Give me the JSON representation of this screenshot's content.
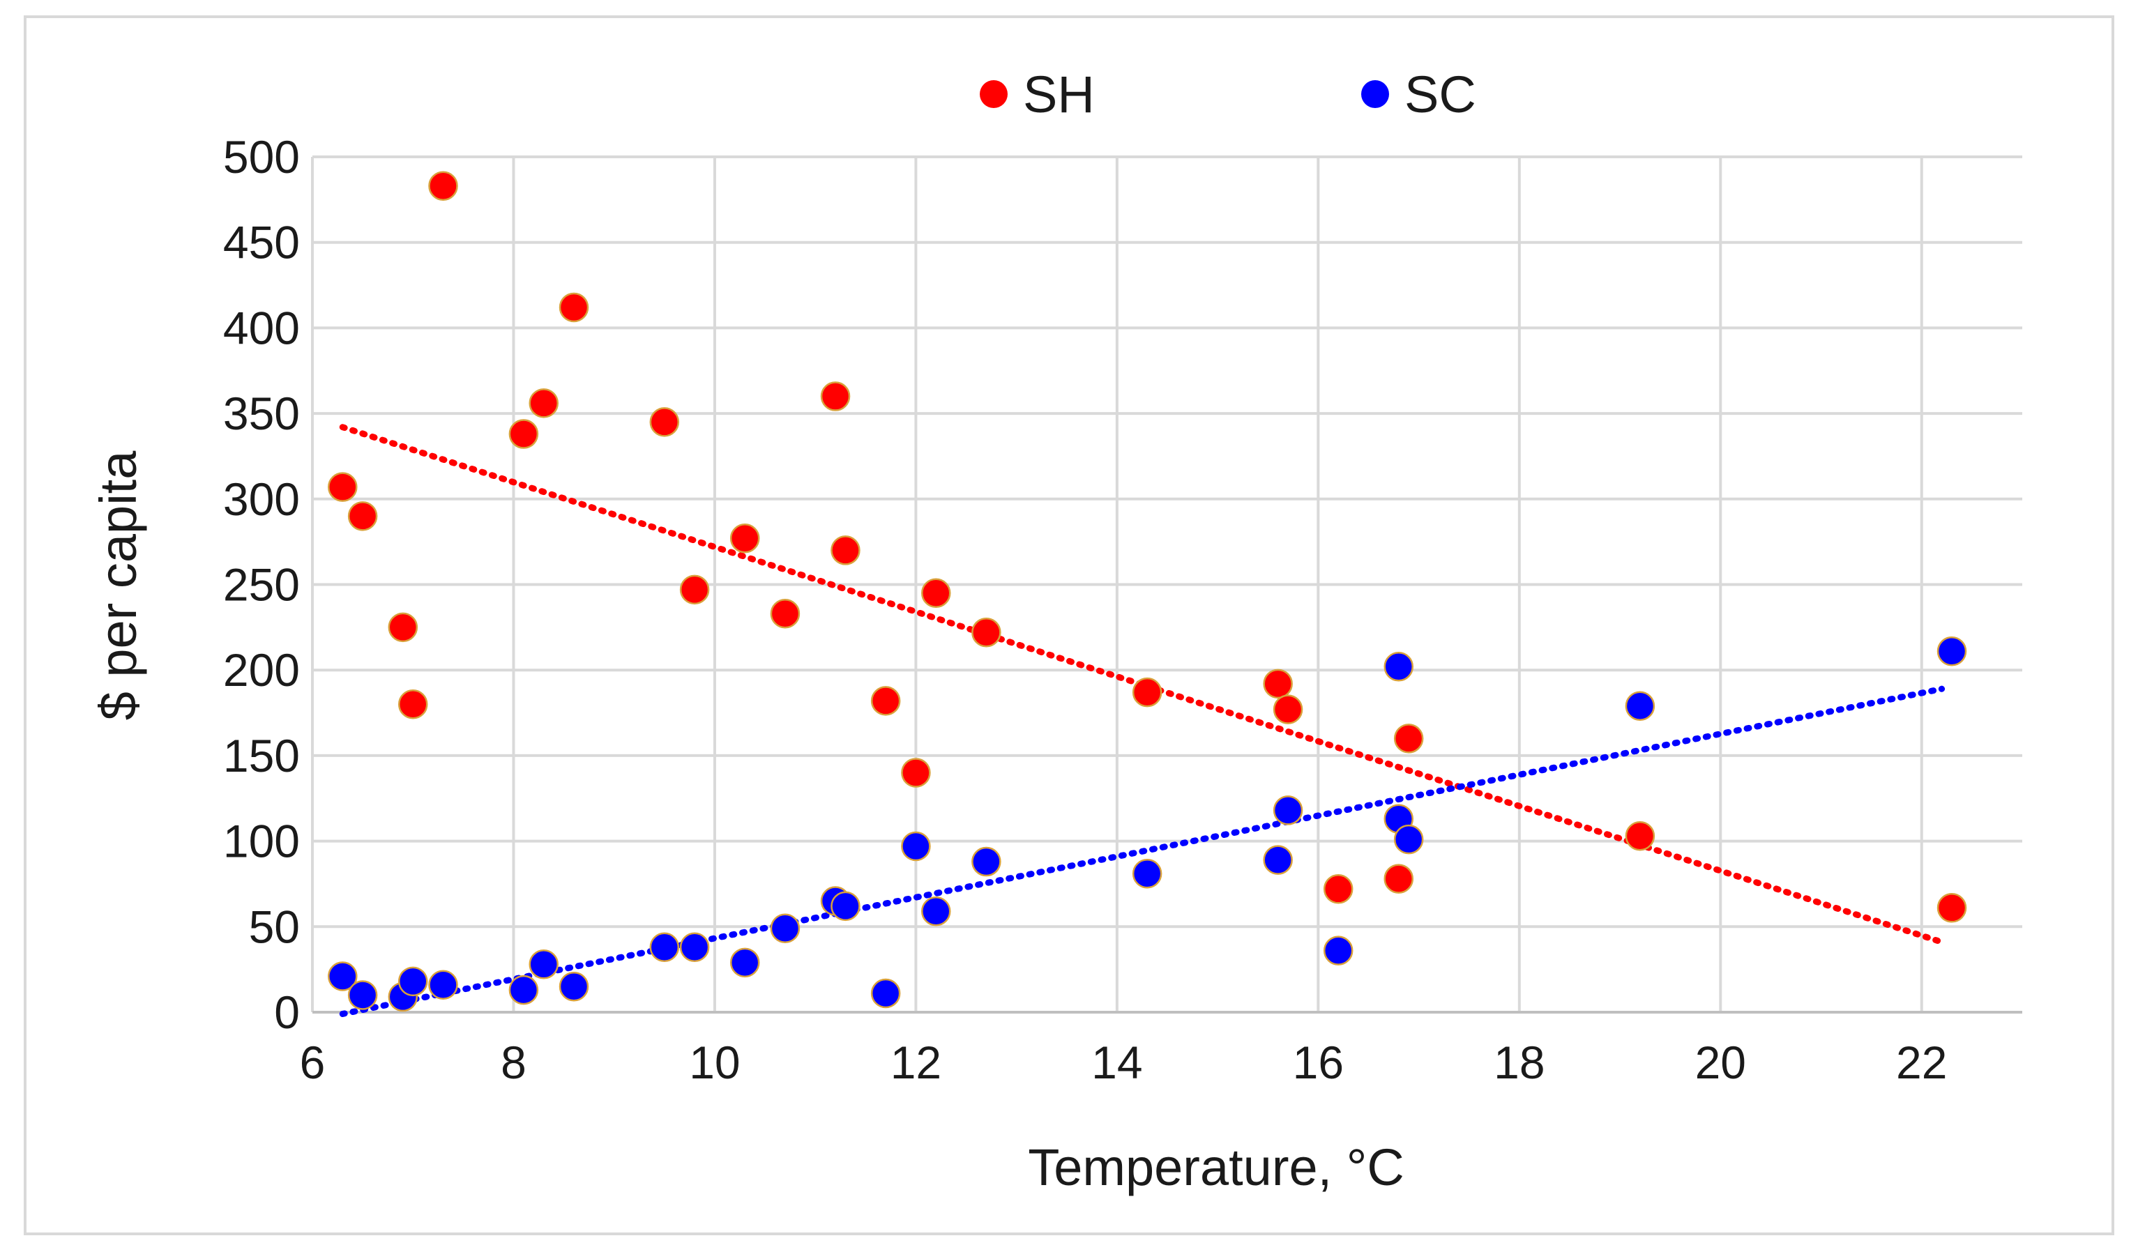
{
  "chart_data": {
    "type": "scatter",
    "title": "",
    "xlabel": "Temperature, °C",
    "ylabel": "$ per capita",
    "xlim": [
      6,
      23
    ],
    "ylim": [
      0,
      500
    ],
    "x_ticks": [
      6,
      8,
      10,
      12,
      14,
      16,
      18,
      20,
      22
    ],
    "y_ticks": [
      0,
      50,
      100,
      150,
      200,
      250,
      300,
      350,
      400,
      450,
      500
    ],
    "grid": true,
    "legend_position": "top-center",
    "series": [
      {
        "name": "SH",
        "color": "#ff0000",
        "trendline": {
          "style": "dotted",
          "from": [
            6.3,
            342
          ],
          "to": [
            22.2,
            41
          ]
        },
        "points": [
          [
            6.3,
            307
          ],
          [
            6.5,
            290
          ],
          [
            6.9,
            225
          ],
          [
            7.0,
            180
          ],
          [
            7.3,
            483
          ],
          [
            8.1,
            338
          ],
          [
            8.3,
            356
          ],
          [
            8.6,
            412
          ],
          [
            9.5,
            345
          ],
          [
            9.8,
            247
          ],
          [
            10.3,
            277
          ],
          [
            10.7,
            233
          ],
          [
            11.2,
            360
          ],
          [
            11.3,
            270
          ],
          [
            11.7,
            182
          ],
          [
            12.0,
            140
          ],
          [
            12.2,
            245
          ],
          [
            12.7,
            222
          ],
          [
            14.3,
            187
          ],
          [
            15.6,
            192
          ],
          [
            15.7,
            177
          ],
          [
            16.2,
            72
          ],
          [
            16.8,
            78
          ],
          [
            16.9,
            160
          ],
          [
            19.2,
            103
          ],
          [
            22.3,
            61
          ]
        ]
      },
      {
        "name": "SC",
        "color": "#0000ff",
        "trendline": {
          "style": "dotted",
          "from": [
            6.3,
            -1
          ],
          "to": [
            22.2,
            189
          ]
        },
        "points": [
          [
            6.3,
            21
          ],
          [
            6.5,
            10
          ],
          [
            6.9,
            9
          ],
          [
            7.0,
            18
          ],
          [
            7.3,
            16
          ],
          [
            8.1,
            13
          ],
          [
            8.3,
            28
          ],
          [
            8.6,
            15
          ],
          [
            9.5,
            38
          ],
          [
            9.8,
            38
          ],
          [
            10.3,
            29
          ],
          [
            10.7,
            49
          ],
          [
            11.2,
            65
          ],
          [
            11.3,
            62
          ],
          [
            11.7,
            11
          ],
          [
            12.0,
            97
          ],
          [
            12.2,
            59
          ],
          [
            12.7,
            88
          ],
          [
            14.3,
            81
          ],
          [
            15.6,
            89
          ],
          [
            15.7,
            118
          ],
          [
            16.2,
            36
          ],
          [
            16.8,
            113
          ],
          [
            16.8,
            202
          ],
          [
            16.9,
            101
          ],
          [
            19.2,
            179
          ],
          [
            22.3,
            211
          ]
        ]
      }
    ]
  }
}
